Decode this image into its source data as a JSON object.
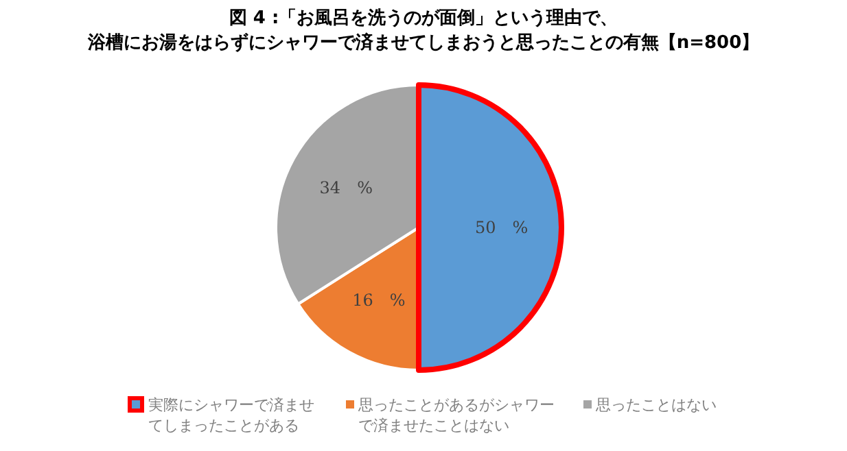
{
  "chart_data": {
    "type": "pie",
    "title": "図 4 :「お風呂を洗うのが面倒」という理由で、",
    "subtitle": "浴槽にお湯をはらずにシャワーで済ませてしまおうと思ったことの有無【n=800】",
    "categories": [
      "実際にシャワーで済ませてしまったことがある",
      "思ったことがあるがシャワーで済ませたことはない",
      "思ったことはない"
    ],
    "values": [
      50,
      16,
      34
    ],
    "colors": [
      "#5b9bd5",
      "#ed7d31",
      "#a5a5a5"
    ],
    "value_labels": [
      "50　%",
      "16　%",
      "34　%"
    ],
    "legend": "bottom"
  }
}
